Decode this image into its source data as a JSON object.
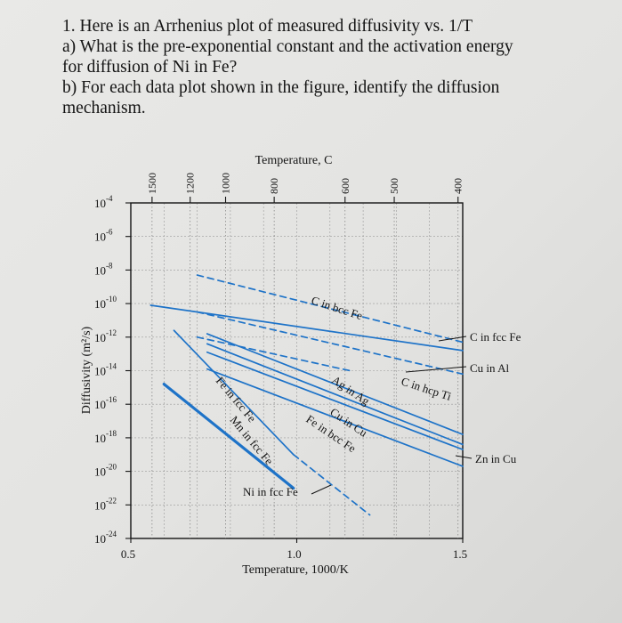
{
  "question": {
    "line1": "1. Here is an Arrhenius plot of measured diffusivity vs. 1/T",
    "line2": "a) What is the pre-exponential constant and the activation energy",
    "line3": "for diffusion of Ni in Fe?",
    "line4": "b) For each data plot shown in the figure, identify the diffusion",
    "line5": "mechanism."
  },
  "chart_data": {
    "type": "line",
    "title": "",
    "xlabel": "Temperature, 1000/K",
    "ylabel": "Diffusivity (m²/s)",
    "top_axis_label": "Temperature, C",
    "xlim": [
      0.5,
      1.5
    ],
    "ylim": [
      -24,
      -4
    ],
    "y_scale": "log",
    "x_ticks": [
      "0.5",
      "1.0",
      "1.5"
    ],
    "y_ticks": [
      {
        "exp": -4,
        "label": "10"
      },
      {
        "exp": -6,
        "label": "10"
      },
      {
        "exp": -8,
        "label": "10"
      },
      {
        "exp": -10,
        "label": "10"
      },
      {
        "exp": -12,
        "label": "10"
      },
      {
        "exp": -14,
        "label": "10"
      },
      {
        "exp": -16,
        "label": "10"
      },
      {
        "exp": -18,
        "label": "10"
      },
      {
        "exp": -20,
        "label": "10"
      },
      {
        "exp": -22,
        "label": "10"
      },
      {
        "exp": -24,
        "label": "10"
      }
    ],
    "top_ticks": [
      "1500",
      "1200",
      "1000",
      "800",
      "600",
      "500",
      "400"
    ],
    "grid": true,
    "series": [
      {
        "name": "C in bcc Fe",
        "style": "solid",
        "x": [
          0.56,
          1.5
        ],
        "y": [
          -10.1,
          -12.8
        ]
      },
      {
        "name": "C in fcc Fe",
        "style": "dashed",
        "x": [
          0.7,
          1.5
        ],
        "y": [
          -8.3,
          -12.3
        ]
      },
      {
        "name": "Cu in Al",
        "style": "dashed",
        "x": [
          0.7,
          1.5
        ],
        "y": [
          -10.5,
          -14.2
        ]
      },
      {
        "name": "C in hcp Ti",
        "style": "dashed",
        "x": [
          0.7,
          1.16
        ],
        "y": [
          -12.0,
          -14.0
        ]
      },
      {
        "name": "Ag in Ag",
        "style": "solid",
        "x": [
          0.73,
          1.5
        ],
        "y": [
          -11.8,
          -17.8
        ]
      },
      {
        "name": "Cu in Cu",
        "style": "solid",
        "x": [
          0.73,
          1.5
        ],
        "y": [
          -12.9,
          -18.7
        ]
      },
      {
        "name": "Fe in bcc Fe",
        "style": "solid",
        "x": [
          0.73,
          1.5
        ],
        "y": [
          -13.9,
          -19.7
        ]
      },
      {
        "name": "Zn in Cu",
        "style": "solid",
        "x": [
          0.73,
          1.5
        ],
        "y": [
          -12.4,
          -18.4
        ]
      },
      {
        "name": "Fe in fcc Fe",
        "style": "solid",
        "x": [
          0.63,
          0.99
        ],
        "y": [
          -11.6,
          -19.0
        ]
      },
      {
        "name": "Mn in fcc Fe",
        "style": "solid",
        "x": [
          0.6,
          0.99
        ],
        "y": [
          -14.8,
          -21.0
        ]
      },
      {
        "name": "Ni in fcc Fe",
        "style": "dashed",
        "x": [
          0.99,
          1.22
        ],
        "y": [
          -19.0,
          -22.6
        ]
      }
    ],
    "annotations": [
      {
        "text": "C in bcc Fe"
      },
      {
        "text": "C in fcc Fe"
      },
      {
        "text": "Cu in Al"
      },
      {
        "text": "C in hcp Ti"
      },
      {
        "text": "Ag in Ag"
      },
      {
        "text": "Cu in Cu"
      },
      {
        "text": "Fe in bcc Fe"
      },
      {
        "text": "Zn in Cu"
      },
      {
        "text": "Fe in fcc Fe"
      },
      {
        "text": "Mn in fcc Fe"
      },
      {
        "text": "Ni in fcc Fe"
      }
    ],
    "line_color": "#1e73c8"
  }
}
